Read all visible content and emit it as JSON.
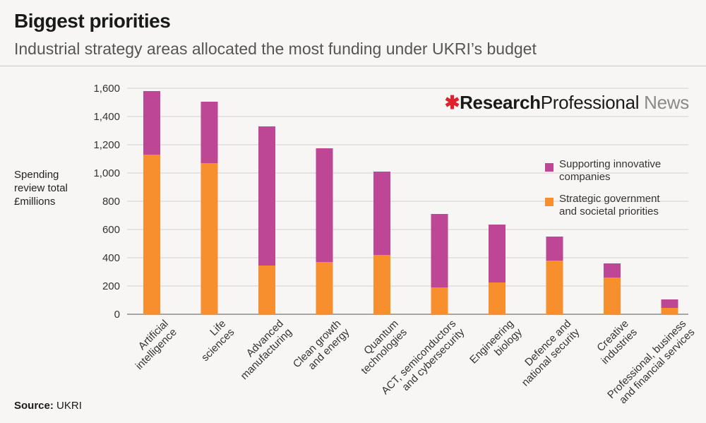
{
  "header": {
    "title": "Biggest priorities",
    "subtitle": "Industrial strategy areas allocated the most funding under UKRI’s budget"
  },
  "brand": {
    "star": "✱",
    "part1": "Research",
    "part2": "Professional",
    "part3": "News"
  },
  "axis": {
    "ylabel_lines": [
      "Spending",
      "review total",
      "£millions"
    ]
  },
  "source": {
    "label": "Source:",
    "value": "UKRI"
  },
  "colors": {
    "strategic": "#f78f2e",
    "innovative": "#bd4795",
    "grid": "#d0d0d0",
    "axis": "#555555"
  },
  "chart_data": {
    "type": "bar",
    "stacked": true,
    "categories": [
      [
        "Artificial",
        "intelligence"
      ],
      [
        "Life",
        "sciences"
      ],
      [
        "Advanced",
        "manufacturing"
      ],
      [
        "Clean growth",
        "and energy"
      ],
      [
        "Quantum",
        "technologies"
      ],
      [
        "ACT, semiconductors",
        "and cybersecurity"
      ],
      [
        "Engineering",
        "biology"
      ],
      [
        "Defence and",
        "national security"
      ],
      [
        "Creative",
        "industries"
      ],
      [
        "Professional, business",
        "and financial services"
      ]
    ],
    "series": [
      {
        "name_lines": [
          "Strategic government",
          "and societal priorities"
        ],
        "color": "#f78f2e",
        "values": [
          1130,
          1070,
          345,
          370,
          420,
          190,
          225,
          380,
          260,
          45
        ]
      },
      {
        "name_lines": [
          "Supporting innovative",
          "companies"
        ],
        "color": "#bd4795",
        "values": [
          450,
          435,
          985,
          805,
          590,
          520,
          410,
          170,
          100,
          60
        ]
      }
    ],
    "ylim": [
      0,
      1600
    ],
    "yticks": [
      0,
      200,
      400,
      600,
      800,
      1000,
      1200,
      1400,
      1600
    ],
    "ytick_labels": [
      "0",
      "200",
      "400",
      "600",
      "800",
      "1,000",
      "1,200",
      "1,400",
      "1,600"
    ],
    "grid": true,
    "legend_position": "right"
  }
}
